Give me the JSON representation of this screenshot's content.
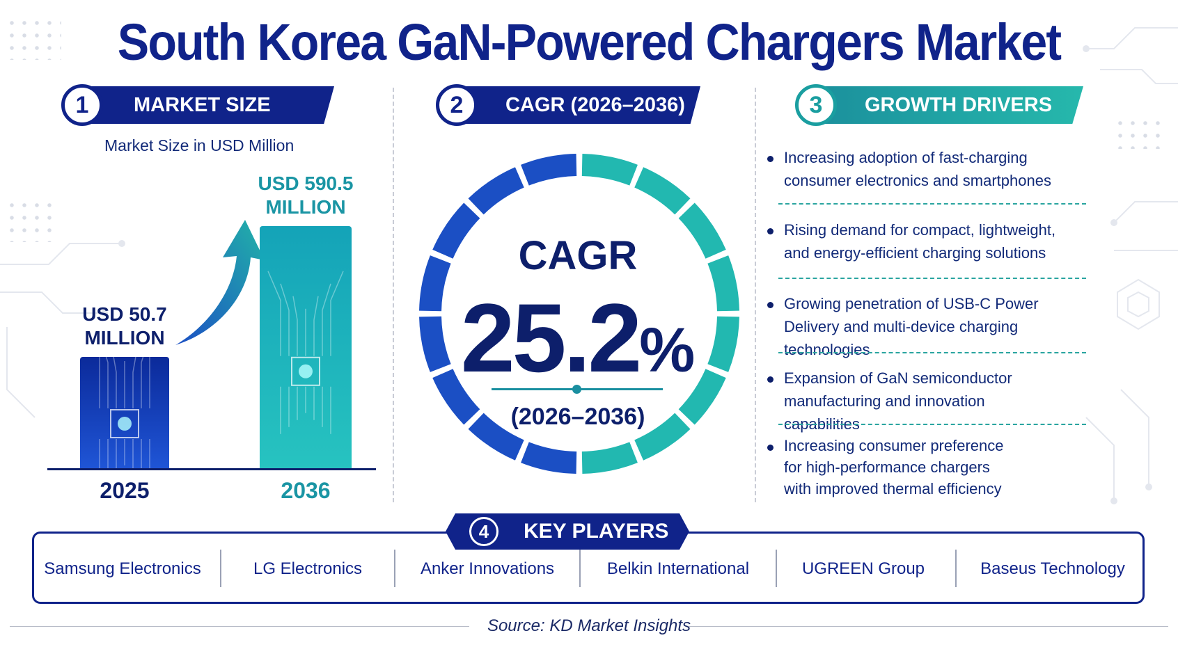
{
  "title": "South Korea GaN-Powered Chargers Market",
  "colors": {
    "navy": "#10238a",
    "blue": "#1b5fd0",
    "teal": "#22b8b0",
    "text": "#0d1f6b"
  },
  "sections": {
    "market_size": {
      "number": "1",
      "label": "MARKET SIZE",
      "caption": "Market Size in USD Million"
    },
    "cagr": {
      "number": "2",
      "label": "CAGR (2026–2036)",
      "word": "CAGR",
      "value": "25.2",
      "unit": "%",
      "period": "(2026–2036)"
    },
    "drivers": {
      "number": "3",
      "label": "GROWTH DRIVERS"
    },
    "players": {
      "number": "4",
      "label": "KEY PLAYERS"
    }
  },
  "chart_data": {
    "type": "bar",
    "title": "",
    "ylabel": "Market Size in USD Million",
    "categories": [
      "2025",
      "2036"
    ],
    "values": [
      50.7,
      590.5
    ],
    "data_labels": [
      "USD 50.7 MILLION",
      "USD 590.5 MILLION"
    ],
    "ylim": [
      0,
      590.5
    ],
    "grid": false
  },
  "growth_drivers": [
    "Increasing adoption of fast-charging consumer electronics and smartphones",
    "Rising demand for compact, lightweight, and energy-efficient charging solutions",
    "Growing penetration of USB-C Power Delivery and multi-device charging technologies",
    "Expansion of GaN semiconductor manufacturing and innovation capabilities",
    "Increasing consumer preference for high-performance chargers with improved thermal efficiency"
  ],
  "key_players": [
    "Samsung Electronics",
    "LG Electronics",
    "Anker Innovations",
    "Belkin International",
    "UGREEN Group",
    "Baseus Technology"
  ],
  "source": "Source: KD Market Insights"
}
